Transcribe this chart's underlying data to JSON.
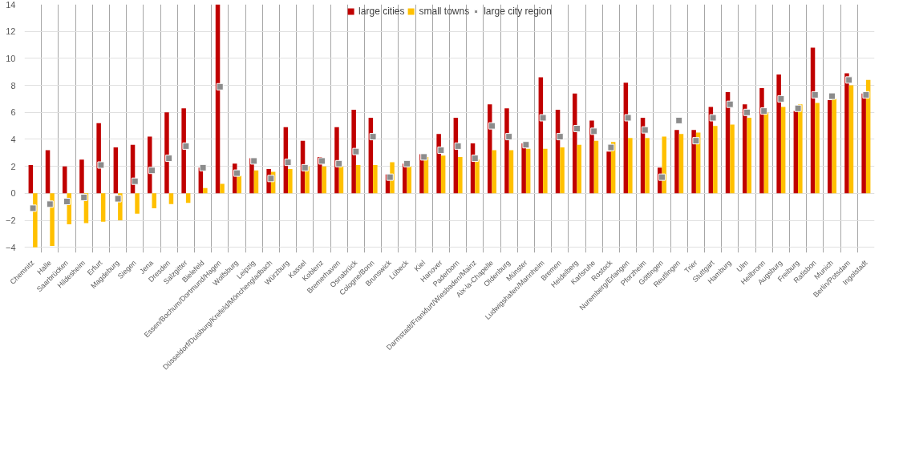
{
  "chart_data": {
    "type": "bar",
    "categories": [
      "Chemnitz",
      "Halle",
      "Saarbrücken",
      "Hildesheim",
      "Erfurt",
      "Magdeburg",
      "Siegen",
      "Jena",
      "Dresden",
      "Salzgitter",
      "Bielefeld",
      "Essen/Bochum/Dortmund/Hagen",
      "Wolfsburg",
      "Leipzig",
      "Düsseldorf/Duisburg/Krefeld/Mönchengladbach",
      "Würzburg",
      "Kassel",
      "Koblenz",
      "Bremerhaven",
      "Osnabrück",
      "Cologne/Bonn",
      "Brunswick",
      "Lübeck",
      "Kiel",
      "Hanover",
      "Paderborn",
      "Darmstadt/Frankfurt/Wiesbaden/Mainz",
      "Aix-la-Chapelle",
      "Oldenburg",
      "Münster",
      "Ludwigshafen/Mannheim",
      "Bremen",
      "Heidelberg",
      "Karlsruhe",
      "Rostock",
      "Nuremberg/Erlangen",
      "Pforzheim",
      "Göttingen",
      "Reutlingen",
      "Trier",
      "Stuttgart",
      "Hamburg",
      "Ulm",
      "Heilbronn",
      "Augsburg",
      "Freiburg",
      "Ratisbon",
      "Munich",
      "Berlin/Potsdam",
      "Ingolstadt"
    ],
    "series": [
      {
        "name": "large cities",
        "color": "#c00000",
        "values": [
          2.1,
          3.2,
          2.0,
          2.5,
          5.2,
          3.4,
          3.6,
          4.2,
          6.0,
          6.3,
          1.9,
          14.0,
          2.2,
          2.6,
          1.8,
          4.9,
          3.9,
          2.7,
          4.9,
          6.2,
          5.6,
          1.4,
          2.2,
          2.9,
          4.4,
          5.6,
          3.7,
          6.6,
          6.3,
          3.7,
          8.6,
          6.2,
          7.4,
          5.4,
          3.1,
          8.2,
          5.6,
          1.9,
          4.7,
          4.7,
          6.4,
          7.5,
          6.6,
          7.8,
          8.8,
          6.1,
          10.8,
          6.9,
          8.9,
          7.4
        ]
      },
      {
        "name": "small towns",
        "color": "#ffc000",
        "values": [
          -4.0,
          -3.9,
          -2.3,
          -2.2,
          -2.1,
          -2.0,
          -1.5,
          -1.1,
          -0.8,
          -0.7,
          0.4,
          0.7,
          1.3,
          1.7,
          1.6,
          1.8,
          2.0,
          2.0,
          2.0,
          2.1,
          2.1,
          2.3,
          2.0,
          2.7,
          2.8,
          2.7,
          2.5,
          3.2,
          3.2,
          3.3,
          3.3,
          3.4,
          3.6,
          3.9,
          3.8,
          4.1,
          4.1,
          4.2,
          4.4,
          4.5,
          5.0,
          5.1,
          5.6,
          6.0,
          6.4,
          6.6,
          6.7,
          7.0,
          8.0,
          8.4
        ]
      },
      {
        "name": "large city region",
        "type": "scatter",
        "color": "#8c8c8c",
        "values": [
          -1.1,
          -0.8,
          -0.6,
          -0.3,
          2.1,
          -0.4,
          0.9,
          1.7,
          2.6,
          3.5,
          1.9,
          7.9,
          1.5,
          2.4,
          1.1,
          2.3,
          1.9,
          2.4,
          2.2,
          3.1,
          4.2,
          1.2,
          2.2,
          2.7,
          3.2,
          3.5,
          2.6,
          5.0,
          4.2,
          3.6,
          5.6,
          4.2,
          4.8,
          4.6,
          3.4,
          5.6,
          4.7,
          1.2,
          5.4,
          3.9,
          5.6,
          6.6,
          6.0,
          6.1,
          7.0,
          6.3,
          7.3,
          7.2,
          8.4,
          7.3
        ]
      }
    ],
    "marker": "square",
    "ylim": [
      -4.4,
      14
    ],
    "yticks": [
      -4,
      -2,
      0,
      2,
      4,
      6,
      8,
      10,
      12,
      14
    ],
    "grid": true,
    "legend": "top"
  }
}
